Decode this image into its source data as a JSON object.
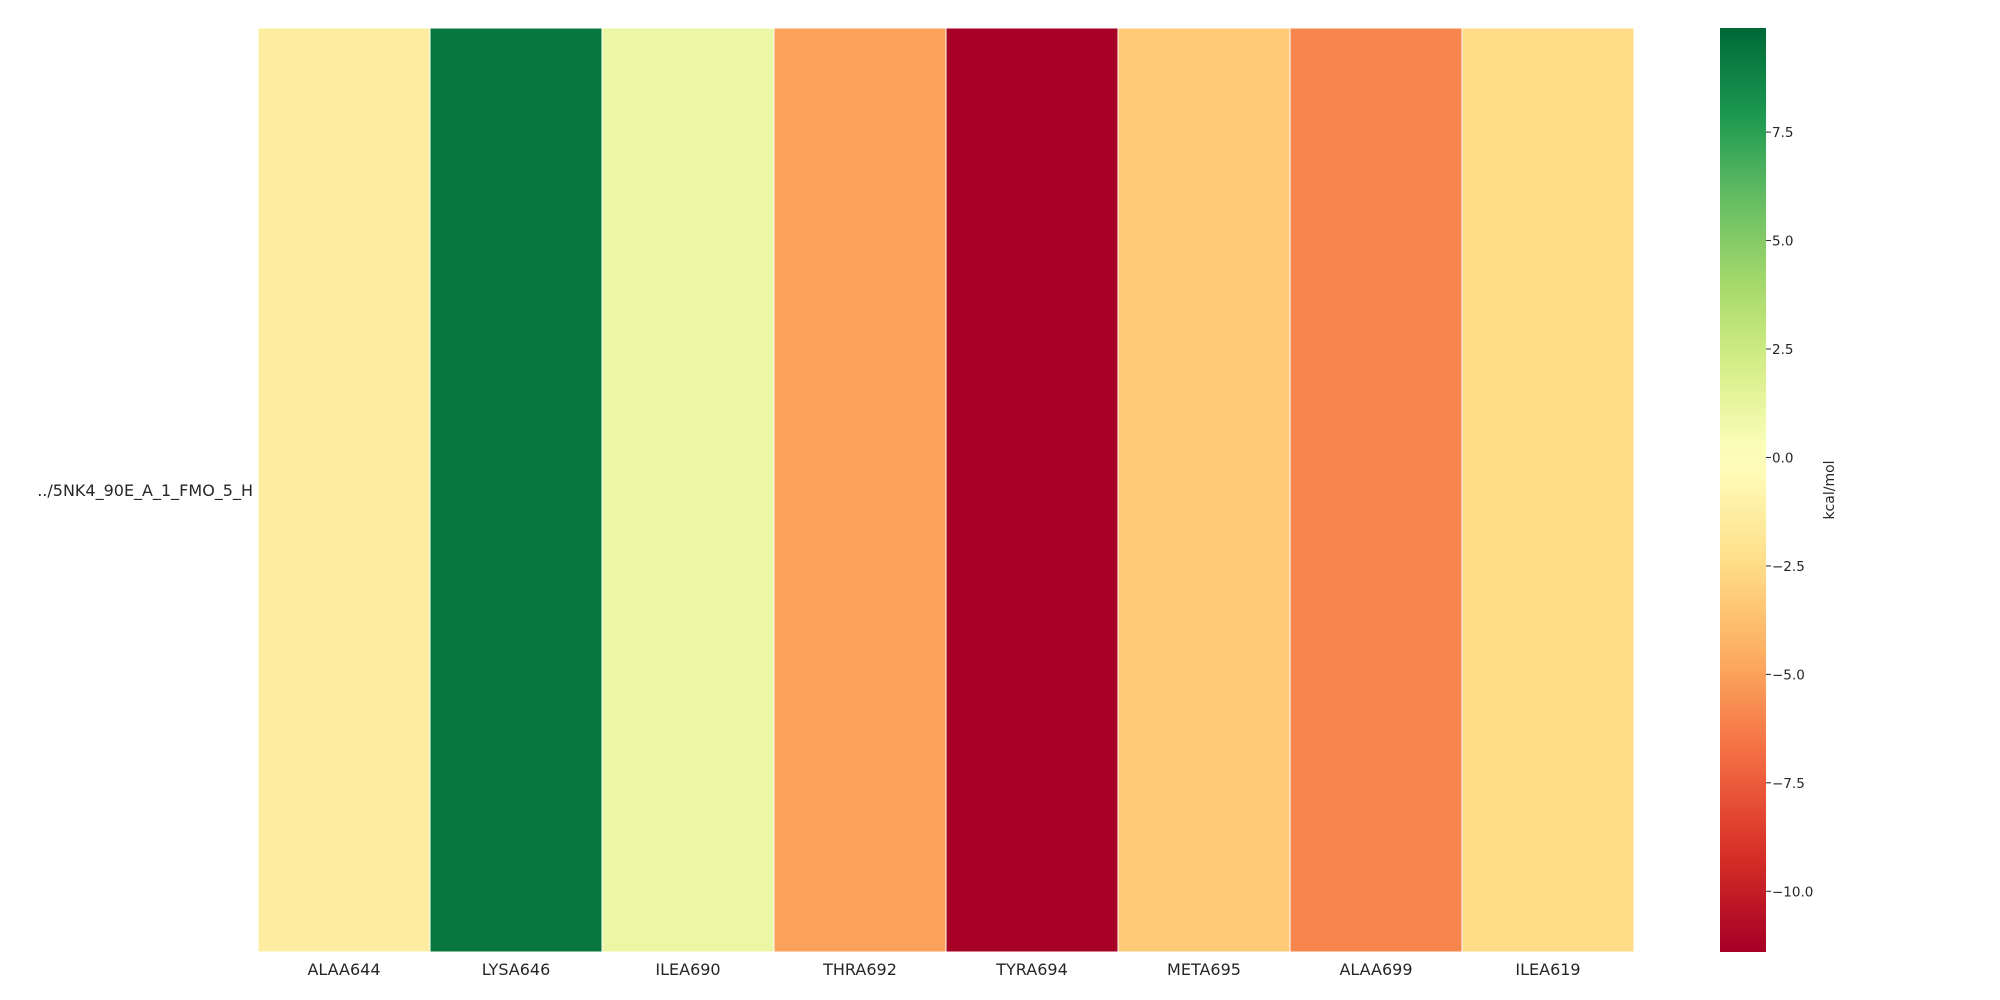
{
  "chart_data": {
    "type": "heatmap",
    "title": "",
    "xlabel": "",
    "ylabel": "",
    "rows": [
      "../5NK4_90E_A_1_FMO_5_H"
    ],
    "columns": [
      "ALAA644",
      "LYSA646",
      "ILEA690",
      "THRA692",
      "TYRA694",
      "META695",
      "ALAA699",
      "ILEA619"
    ],
    "values": [
      [
        -1.3,
        9.3,
        1.0,
        -5.0,
        -11.3,
        -3.3,
        -6.0,
        -2.5
      ]
    ],
    "colorbar": {
      "label": "kcal/mol",
      "range": [
        -11.4,
        9.9
      ],
      "ticks": [
        7.5,
        5.0,
        2.5,
        0.0,
        -2.5,
        -5.0,
        -7.5,
        -10.0
      ],
      "tick_labels": [
        "7.5",
        "5.0",
        "2.5",
        "0.0",
        "−2.5",
        "−5.0",
        "−7.5",
        "−10.0"
      ],
      "colormap": "RdYlGn"
    },
    "grid": false,
    "cell_border_color": "#ffffff"
  }
}
